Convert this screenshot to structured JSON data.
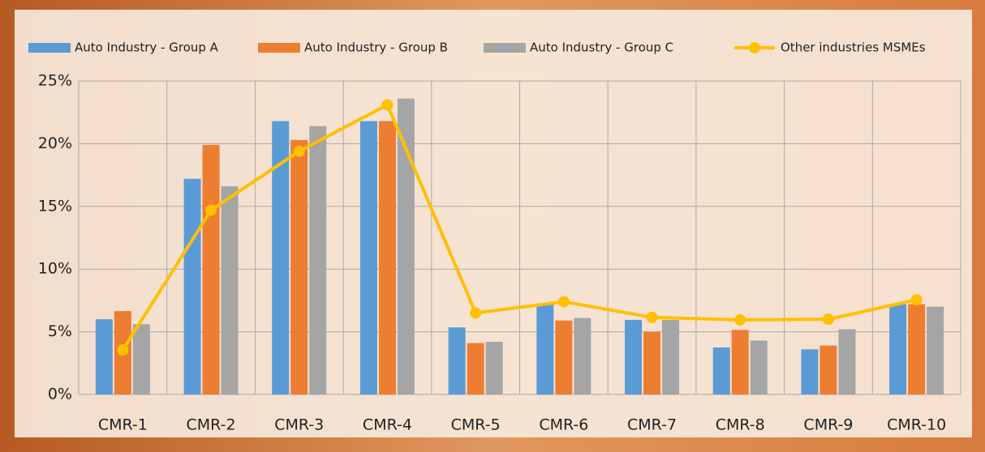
{
  "chart_data": {
    "type": "bar",
    "categories": [
      "CMR-1",
      "CMR-2",
      "CMR-3",
      "CMR-4",
      "CMR-5",
      "CMR-6",
      "CMR-7",
      "CMR-8",
      "CMR-9",
      "CMR-10"
    ],
    "series": [
      {
        "name": "Auto Industry - Group A",
        "type": "bar",
        "color": "#5b9bd5",
        "values": [
          6.0,
          17.2,
          21.8,
          21.8,
          5.35,
          7.2,
          5.95,
          3.75,
          3.6,
          7.2
        ]
      },
      {
        "name": "Auto Industry - Group B",
        "type": "bar",
        "color": "#ed7d31",
        "values": [
          6.65,
          19.9,
          20.3,
          21.8,
          4.1,
          5.9,
          5.0,
          5.15,
          3.9,
          7.2
        ]
      },
      {
        "name": "Auto Industry - Group C",
        "type": "bar",
        "color": "#a5a5a5",
        "values": [
          5.6,
          16.6,
          21.4,
          23.6,
          4.2,
          6.1,
          5.95,
          4.3,
          5.2,
          7.0
        ]
      },
      {
        "name": "Other industries MSMEs",
        "type": "line",
        "color": "#ffc000",
        "values": [
          3.55,
          14.7,
          19.4,
          23.1,
          6.5,
          7.4,
          6.15,
          5.95,
          6.0,
          7.55
        ]
      }
    ],
    "ylim": [
      0,
      25
    ],
    "yticks": [
      {
        "value": 0,
        "label": "0%"
      },
      {
        "value": 5,
        "label": "5%"
      },
      {
        "value": 10,
        "label": "10%"
      },
      {
        "value": 15,
        "label": "15%"
      },
      {
        "value": 20,
        "label": "20%"
      },
      {
        "value": 25,
        "label": "25%"
      }
    ],
    "grid": true,
    "legend": "top"
  }
}
